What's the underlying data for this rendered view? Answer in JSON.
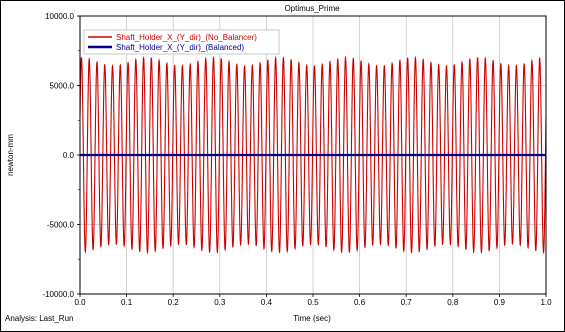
{
  "chart_data": {
    "type": "line",
    "title": "Optimus_Prime",
    "xlabel": "Time (sec)",
    "ylabel": "newton-mm",
    "xlim": [
      0.0,
      1.0
    ],
    "ylim": [
      -10000.0,
      10000.0
    ],
    "x_ticks": [
      "0.0",
      "0.1",
      "0.2",
      "0.3",
      "0.4",
      "0.5",
      "0.6",
      "0.7",
      "0.8",
      "0.9",
      "1.0"
    ],
    "y_ticks": [
      "10000.0",
      "5000.0",
      "0.0",
      "-5000.0",
      "-10000.0"
    ],
    "grid": true,
    "legend_position": "top-left",
    "series": [
      {
        "name": "Shaft_Holder_X_(Y_dir)_(No_Balancer)",
        "color": "#cc0000",
        "shape": "sinusoid",
        "amplitude": 7000,
        "cycles_per_second": 60,
        "envelope_min_amplitude": 6400
      },
      {
        "name": "Shaft_Holder_X_(Y_dir)_(Balanced)",
        "color": "#00008b",
        "shape": "constant",
        "value": 0.0
      }
    ],
    "footer_left": "Analysis:  Last_Run"
  }
}
